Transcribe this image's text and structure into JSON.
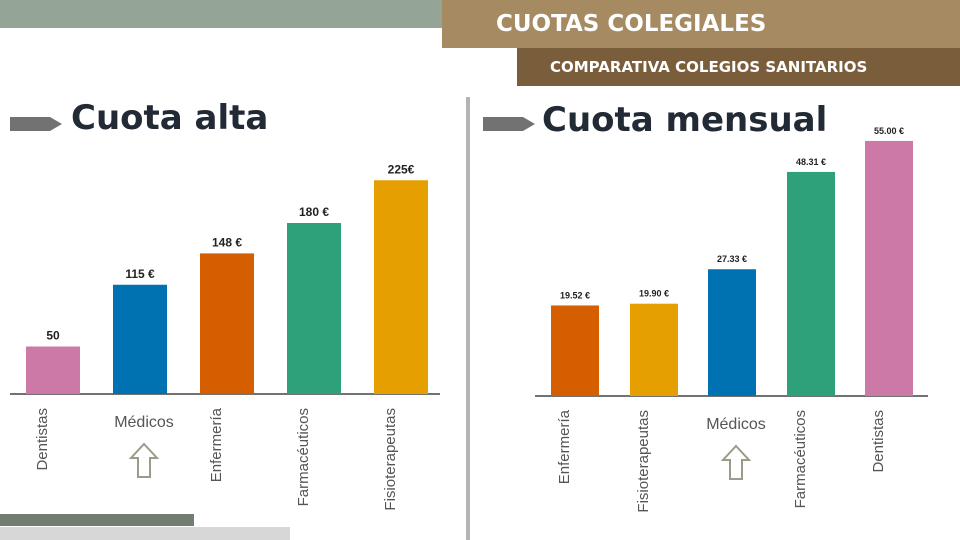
{
  "header": {
    "title": "CUOTAS COLEGIALES",
    "subtitle": "COMPARATIVA COLEGIOS SANITARIOS"
  },
  "chart_data": [
    {
      "type": "bar",
      "title": "Cuota alta",
      "categories": [
        "Dentistas",
        "Médicos",
        "Enfermería",
        "Farmacéuticos",
        "Fisioterapeutas"
      ],
      "values": [
        50,
        115,
        148,
        180,
        225
      ],
      "labels": [
        "50",
        "115 €",
        "148 €",
        "180 €",
        "225€"
      ],
      "colors": [
        "#cc79a7",
        "#0072b2",
        "#d55e00",
        "#2ea07a",
        "#e69f00"
      ],
      "highlight": "Médicos",
      "ylim": [
        0,
        240
      ]
    },
    {
      "type": "bar",
      "title": "Cuota mensual",
      "categories": [
        "Enfermería",
        "Fisioterapeutas",
        "Médicos",
        "Farmacéuticos",
        "Dentistas"
      ],
      "values": [
        19.52,
        19.9,
        27.33,
        48.31,
        55.0
      ],
      "labels": [
        "19.52 €",
        "19.90 €",
        "27.33 €",
        "48.31 €",
        "55.00 €"
      ],
      "colors": [
        "#d55e00",
        "#e69f00",
        "#0072b2",
        "#2ea07a",
        "#cc79a7"
      ],
      "highlight": "Médicos",
      "ylim": [
        0,
        58
      ]
    }
  ]
}
